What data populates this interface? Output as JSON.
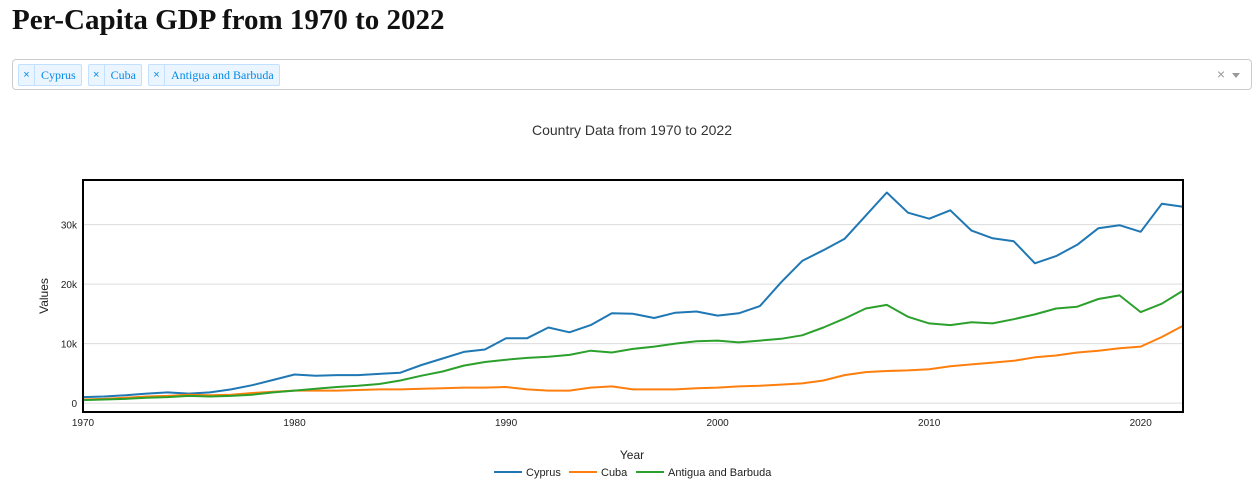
{
  "page": {
    "title": "Per-Capita GDP from 1970 to 2022"
  },
  "selector": {
    "chips": [
      {
        "label": "Cyprus",
        "remove_symbol": "×"
      },
      {
        "label": "Cuba",
        "remove_symbol": "×"
      },
      {
        "label": "Antigua and Barbuda",
        "remove_symbol": "×"
      }
    ],
    "clear_symbol": "×"
  },
  "chart_data": {
    "type": "line",
    "title": "Country Data from 1970 to 2022",
    "xlabel": "Year",
    "ylabel": "Values",
    "xlim": [
      1970,
      2022
    ],
    "ylim": [
      -1500,
      37500
    ],
    "x_ticks": [
      1970,
      1980,
      1990,
      2000,
      2010,
      2020
    ],
    "y_ticks": [
      0,
      10000,
      20000,
      30000
    ],
    "y_tick_labels": [
      "0",
      "10k",
      "20k",
      "30k"
    ],
    "grid": "horizontal",
    "legend_position": "bottom",
    "x": [
      1970,
      1971,
      1972,
      1973,
      1974,
      1975,
      1976,
      1977,
      1978,
      1979,
      1980,
      1981,
      1982,
      1983,
      1984,
      1985,
      1986,
      1987,
      1988,
      1989,
      1990,
      1991,
      1992,
      1993,
      1994,
      1995,
      1996,
      1997,
      1998,
      1999,
      2000,
      2001,
      2002,
      2003,
      2004,
      2005,
      2006,
      2007,
      2008,
      2009,
      2010,
      2011,
      2012,
      2013,
      2014,
      2015,
      2016,
      2017,
      2018,
      2019,
      2020,
      2021,
      2022
    ],
    "series": [
      {
        "name": "Cyprus",
        "color": "#1f77b4",
        "values": [
          1000,
          1100,
          1300,
          1600,
          1800,
          1600,
          1800,
          2300,
          3000,
          3900,
          4800,
          4600,
          4700,
          4700,
          4900,
          5100,
          6400,
          7500,
          8600,
          9000,
          10900,
          10900,
          12700,
          11900,
          13100,
          15100,
          15000,
          14300,
          15200,
          15400,
          14700,
          15100,
          16300,
          20300,
          23900,
          25700,
          27600,
          31500,
          35400,
          32000,
          31000,
          32400,
          29000,
          27700,
          27200,
          23500,
          24700,
          26600,
          29400,
          29900,
          28800,
          33500,
          33000
        ]
      },
      {
        "name": "Cuba",
        "color": "#ff7f0e",
        "values": [
          600,
          700,
          900,
          1100,
          1200,
          1400,
          1300,
          1400,
          1700,
          1900,
          2100,
          2100,
          2100,
          2200,
          2300,
          2300,
          2400,
          2500,
          2600,
          2600,
          2700,
          2300,
          2100,
          2100,
          2600,
          2800,
          2300,
          2300,
          2300,
          2500,
          2600,
          2800,
          2900,
          3100,
          3300,
          3800,
          4700,
          5200,
          5400,
          5500,
          5700,
          6200,
          6500,
          6800,
          7100,
          7700,
          8000,
          8500,
          8800,
          9200,
          9500,
          11100,
          13000
        ]
      },
      {
        "name": "Antigua and Barbuda",
        "color": "#2ca02c",
        "values": [
          500,
          600,
          700,
          900,
          1000,
          1200,
          1100,
          1200,
          1400,
          1800,
          2100,
          2400,
          2700,
          2900,
          3200,
          3800,
          4600,
          5300,
          6300,
          6900,
          7300,
          7600,
          7800,
          8100,
          8800,
          8500,
          9100,
          9500,
          10000,
          10400,
          10500,
          10200,
          10500,
          10800,
          11400,
          12700,
          14200,
          15900,
          16500,
          14500,
          13400,
          13100,
          13600,
          13400,
          14100,
          14900,
          15900,
          16200,
          17500,
          18100,
          15300,
          16700,
          18900
        ]
      }
    ]
  }
}
